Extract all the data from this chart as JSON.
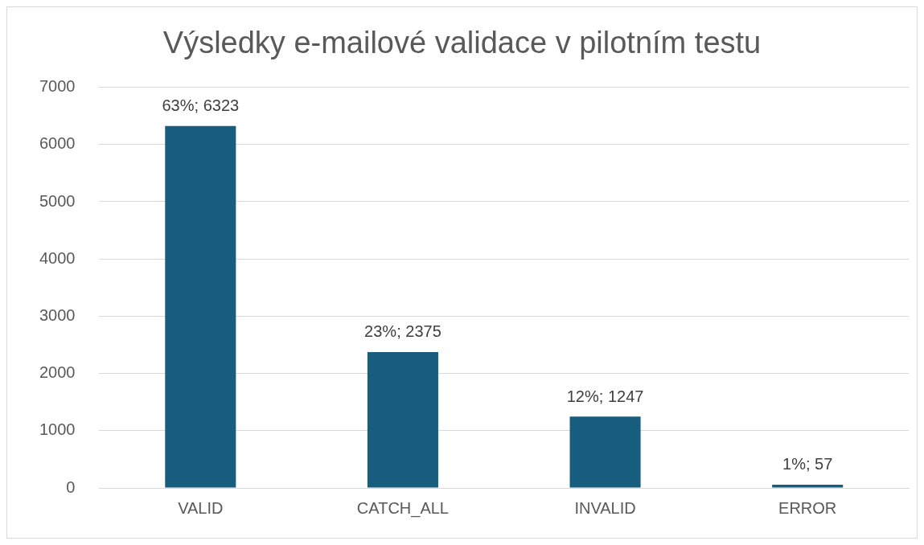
{
  "chart_data": {
    "type": "bar",
    "title": "Výsledky e-mailové validace v pilotním testu",
    "categories": [
      "VALID",
      "CATCH_ALL",
      "INVALID",
      "ERROR"
    ],
    "values": [
      6323,
      2375,
      1247,
      57
    ],
    "value_labels": [
      "63%; 6323",
      "23%; 2375",
      "12%; 1247",
      "1%; 57"
    ],
    "color": "#175e7e",
    "ylim": [
      0,
      7000
    ],
    "yticks": [
      0,
      1000,
      2000,
      3000,
      4000,
      5000,
      6000,
      7000
    ],
    "grid": "y",
    "legend": false
  }
}
